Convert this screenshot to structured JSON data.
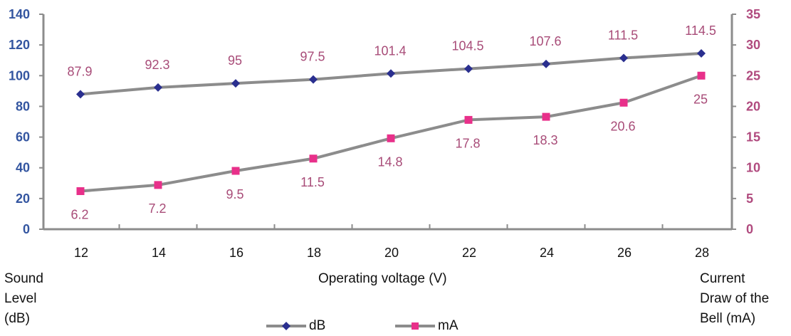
{
  "chart_data": {
    "type": "line",
    "xlabel": "Operating voltage (V)",
    "ylabel_left": "Sound\nLevel\n(dB)",
    "ylabel_right": "Current\nDraw of the\nBell (mA)",
    "x": [
      12,
      14,
      16,
      18,
      20,
      22,
      24,
      26,
      28
    ],
    "y_left_range": [
      0,
      140
    ],
    "y_left_ticks": [
      0,
      20,
      40,
      60,
      80,
      100,
      120,
      140
    ],
    "y_right_range": [
      0,
      35
    ],
    "y_right_ticks": [
      0,
      5,
      10,
      15,
      20,
      25,
      30,
      35
    ],
    "legend_position": "bottom",
    "grid": false,
    "series": [
      {
        "name": "dB",
        "axis": "left",
        "marker": "diamond",
        "marker_color": "#2a2f8f",
        "line_color": "#8c8c8c",
        "values": [
          87.9,
          92.3,
          95,
          97.5,
          101.4,
          104.5,
          107.6,
          111.5,
          114.5
        ],
        "labels": [
          "87.9",
          "92.3",
          "95",
          "97.5",
          "101.4",
          "104.5",
          "107.6",
          "111.5",
          "114.5"
        ]
      },
      {
        "name": "mA",
        "axis": "right",
        "marker": "square",
        "marker_color": "#e8308a",
        "line_color": "#8c8c8c",
        "values": [
          6.2,
          7.2,
          9.5,
          11.5,
          14.8,
          17.8,
          18.3,
          20.6,
          25
        ],
        "labels": [
          "6.2",
          "7.2",
          "9.5",
          "11.5",
          "14.8",
          "17.8",
          "18.3",
          "20.6",
          "25"
        ]
      }
    ],
    "colors": {
      "axis": "#8c8c8c",
      "left_ticks": "#3355a0",
      "right_ticks": "#b04a7e",
      "data_labels": "#a84c78"
    }
  }
}
